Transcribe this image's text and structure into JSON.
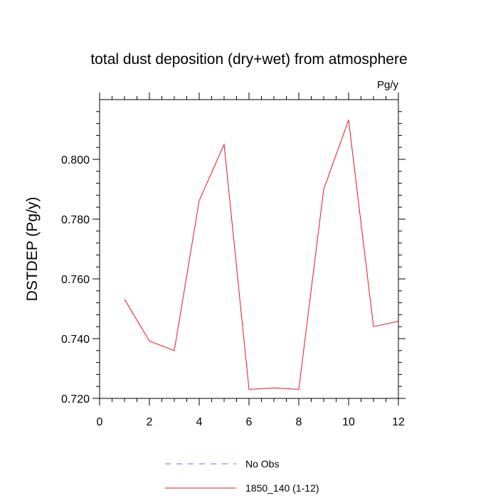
{
  "chart_data": {
    "type": "line",
    "title": "total dust deposition (dry+wet) from atmosphere",
    "units": "Pg/y",
    "ylabel": "DSTDEP  (Pg/y)",
    "xlabel": "",
    "xlim": [
      0,
      12
    ],
    "ylim": [
      0.72,
      0.82
    ],
    "x_ticks": [
      0,
      2,
      4,
      6,
      8,
      10,
      12
    ],
    "x_tick_labels": [
      "0",
      "2",
      "4",
      "6",
      "8",
      "10",
      "12"
    ],
    "y_ticks": [
      0.72,
      0.74,
      0.76,
      0.78,
      0.8
    ],
    "y_tick_labels": [
      "0.720",
      "0.740",
      "0.760",
      "0.780",
      "0.800"
    ],
    "grid": false,
    "legend_position": "bottom",
    "series": [
      {
        "name": "No Obs",
        "color": "#6b6bd6",
        "dash": "dashed",
        "x": [],
        "values": []
      },
      {
        "name": "1850_140 (1-12)",
        "color": "#e8141c",
        "dash": "solid",
        "x": [
          1,
          2,
          3,
          4,
          5,
          6,
          7,
          8,
          9,
          10,
          11,
          12
        ],
        "values": [
          0.7532,
          0.7392,
          0.736,
          0.7862,
          0.805,
          0.723,
          0.7235,
          0.723,
          0.79,
          0.8132,
          0.744,
          0.7458
        ]
      }
    ]
  }
}
